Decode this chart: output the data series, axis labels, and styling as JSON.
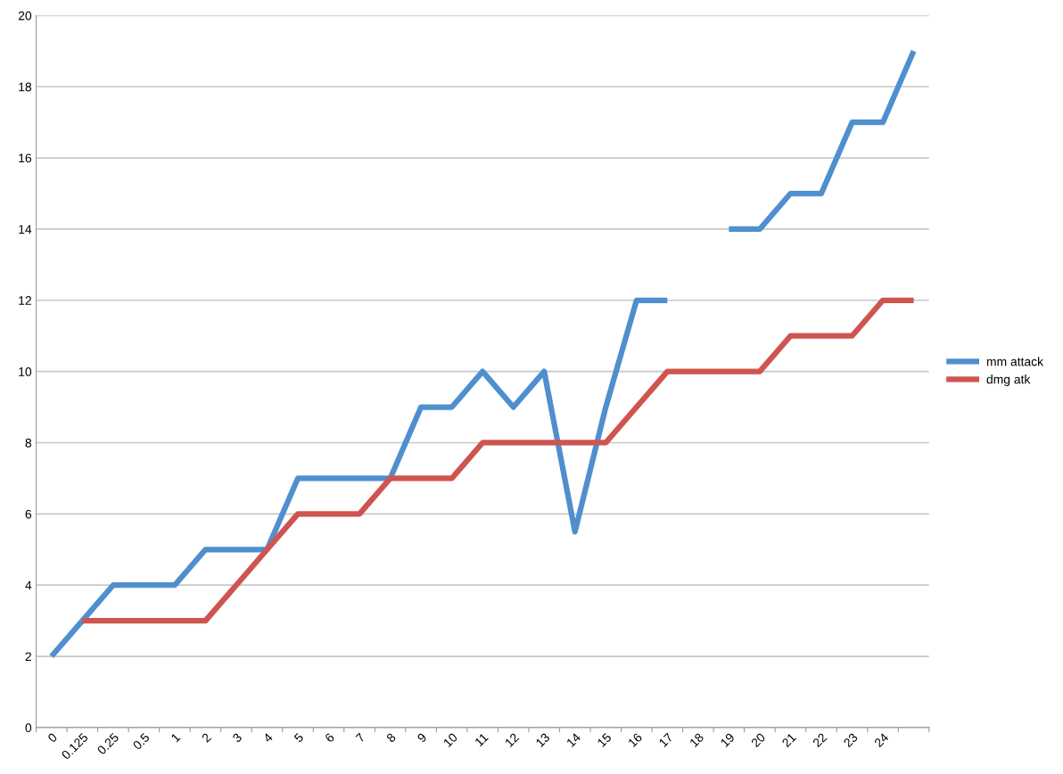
{
  "chart_data": {
    "type": "line",
    "categories": [
      "0",
      "0.125",
      "0.25",
      "0.5",
      "1",
      "2",
      "3",
      "4",
      "5",
      "6",
      "7",
      "8",
      "9",
      "10",
      "11",
      "12",
      "13",
      "14",
      "15",
      "16",
      "17",
      "18",
      "19",
      "20",
      "21",
      "22",
      "23",
      "24",
      null
    ],
    "series": [
      {
        "name": "mm attack",
        "color": "#4f8fcf",
        "values": [
          2,
          3,
          4,
          4,
          4,
          5,
          5,
          5,
          7,
          7,
          7,
          7,
          9,
          9,
          10,
          9,
          10,
          5.5,
          9,
          12,
          12,
          null,
          14,
          14,
          15,
          15,
          17,
          17,
          19
        ]
      },
      {
        "name": "dmg atk",
        "color": "#cf5450",
        "values": [
          null,
          3,
          3,
          3,
          3,
          3,
          4,
          5,
          6,
          6,
          6,
          7,
          7,
          7,
          8,
          8,
          8,
          8,
          8,
          9,
          10,
          10,
          10,
          10,
          11,
          11,
          11,
          12,
          12
        ]
      }
    ],
    "ylim": [
      0,
      20
    ],
    "yticks": [
      0,
      2,
      4,
      6,
      8,
      10,
      12,
      14,
      16,
      18,
      20
    ],
    "grid": "y",
    "legend": "right",
    "marker": "none",
    "line_style": "solid"
  }
}
